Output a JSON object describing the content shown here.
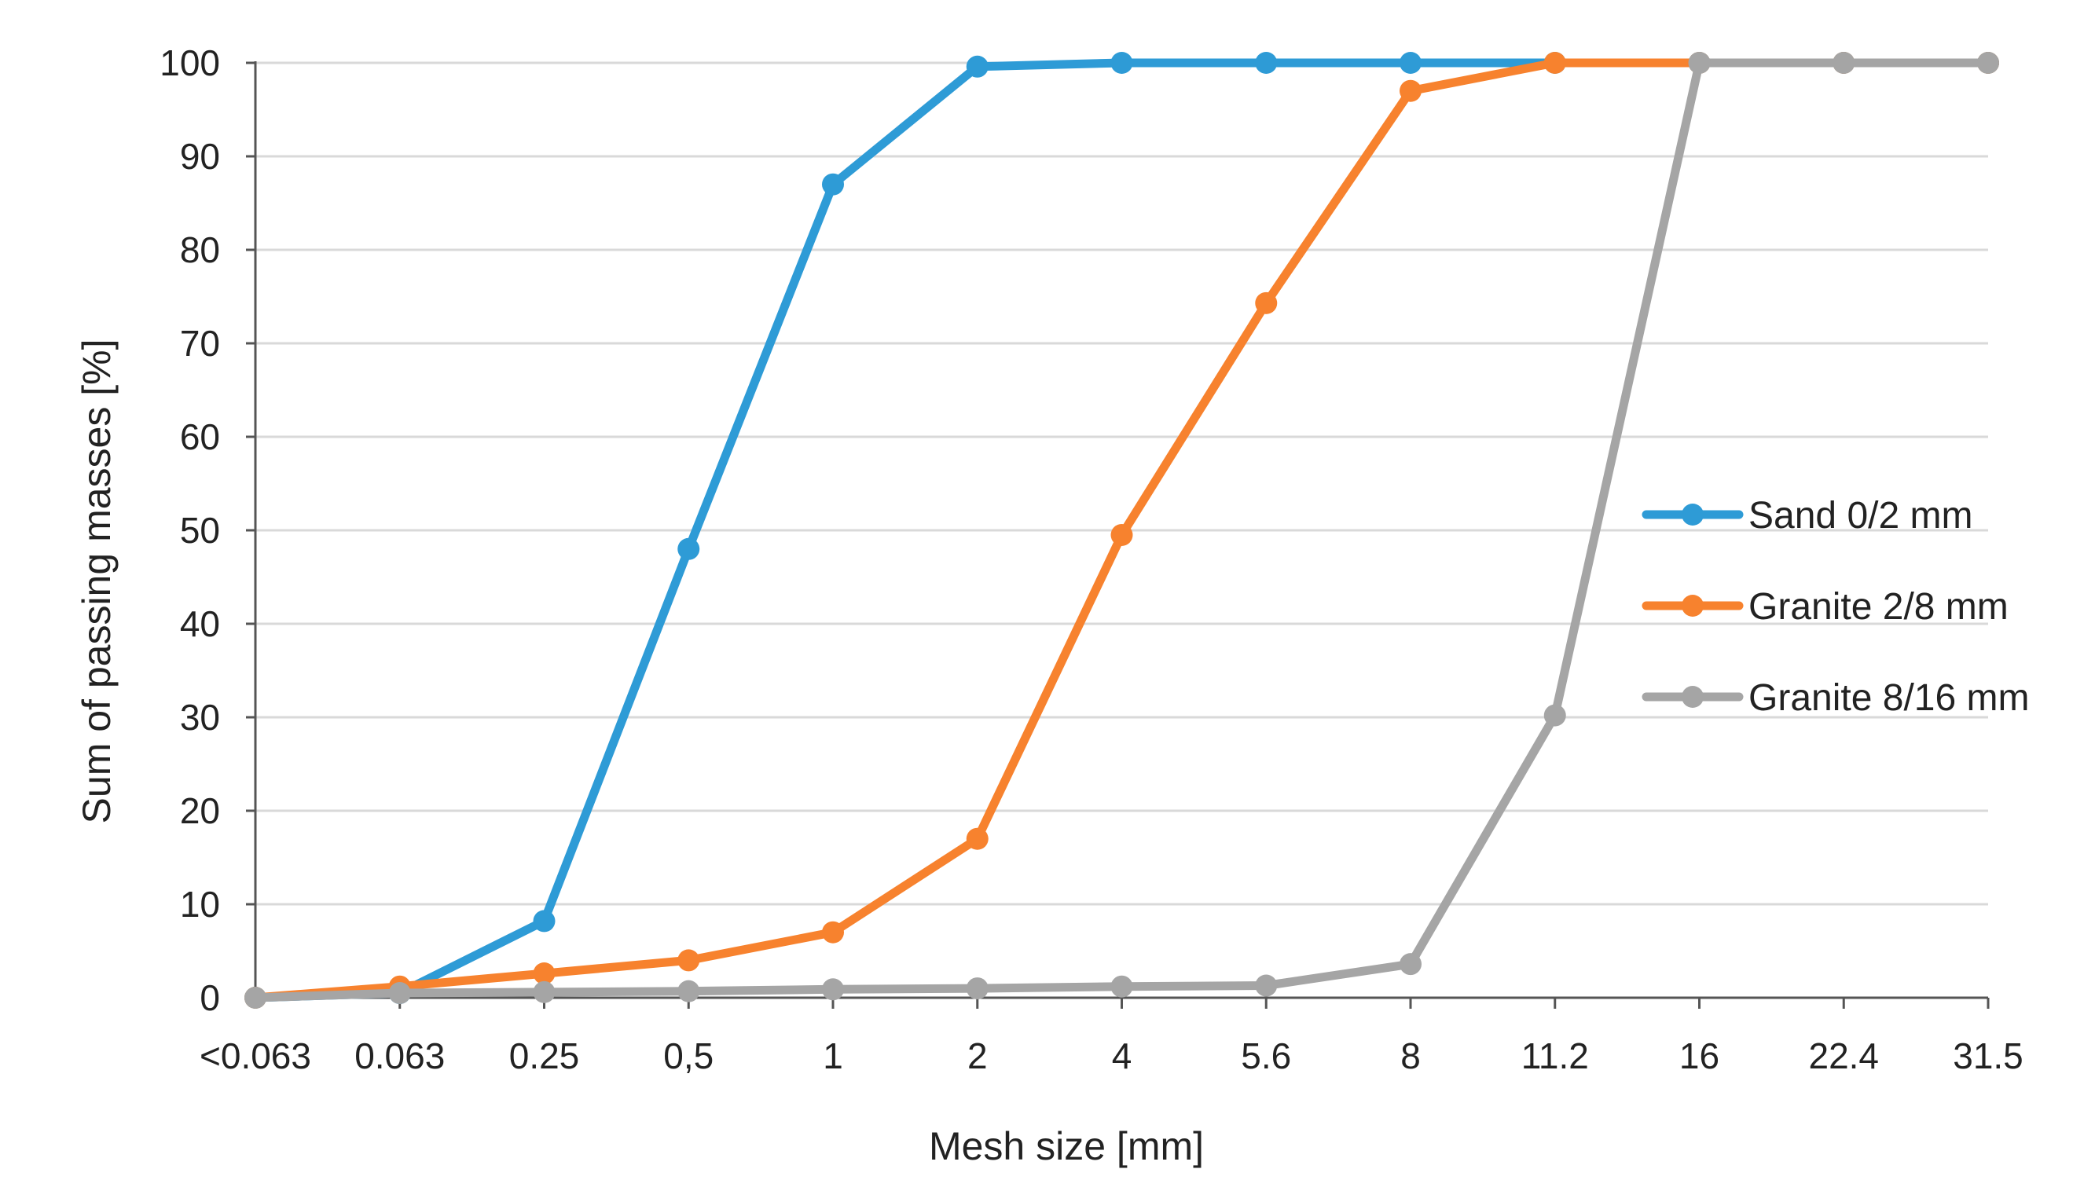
{
  "chart_data": {
    "type": "line",
    "title": "",
    "xlabel": "Mesh size [mm]",
    "ylabel": "Sum of passing masses [%]",
    "categories": [
      "<0.063",
      "0.063",
      "0.25",
      "0,5",
      "1",
      "2",
      "4",
      "5.6",
      "8",
      "11.2",
      "16",
      "22.4",
      "31.5"
    ],
    "ylim": [
      0,
      100
    ],
    "yticks": [
      0,
      10,
      20,
      30,
      40,
      50,
      60,
      70,
      80,
      90,
      100
    ],
    "grid": true,
    "legend_position": "right",
    "series": [
      {
        "name": "Sand 0/2 mm",
        "color": "#2e9bd6",
        "values": [
          0,
          0.5,
          8.2,
          48,
          87,
          99.6,
          100,
          100,
          100,
          100,
          100,
          100,
          100
        ]
      },
      {
        "name": "Granite 2/8 mm",
        "color": "#f7822e",
        "values": [
          0,
          1.2,
          2.6,
          4.0,
          7.0,
          17.0,
          49.5,
          74.3,
          97.0,
          100,
          100,
          100,
          100
        ]
      },
      {
        "name": "Granite 8/16 mm",
        "color": "#a5a5a5",
        "values": [
          0,
          0.5,
          0.6,
          0.7,
          0.9,
          1.0,
          1.2,
          1.3,
          3.6,
          30.2,
          100,
          100,
          100
        ]
      }
    ]
  }
}
